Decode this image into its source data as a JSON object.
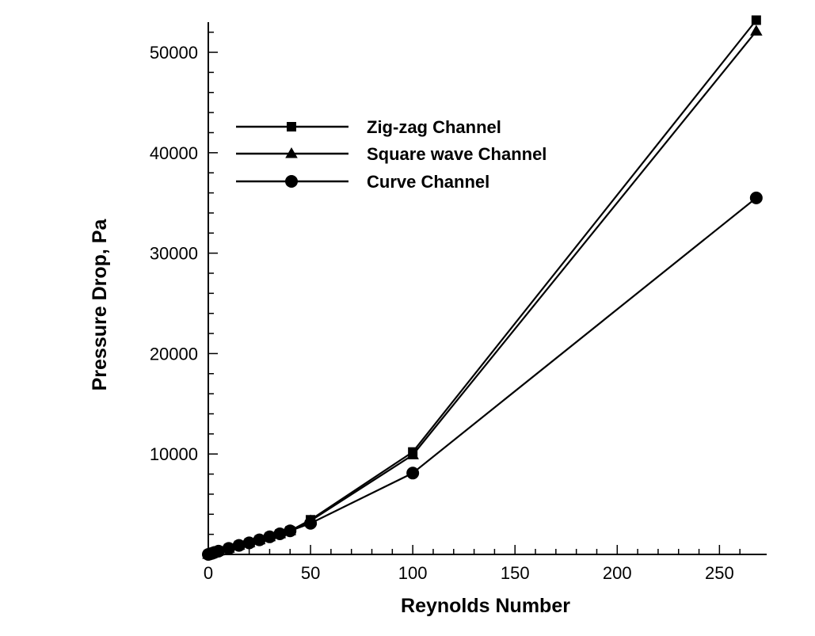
{
  "chart_data": {
    "type": "line",
    "xlabel": "Reynolds Number",
    "ylabel": "Pressure Drop, Pa",
    "xlim": [
      0,
      270
    ],
    "ylim": [
      0,
      53000
    ],
    "xticks": [
      0,
      50,
      100,
      150,
      200,
      250
    ],
    "yticks": [
      10000,
      20000,
      30000,
      40000,
      50000
    ],
    "xtick_labels": [
      "0",
      "50",
      "100",
      "150",
      "200",
      "250"
    ],
    "ytick_labels": [
      "10000",
      "20000",
      "30000",
      "40000",
      "50000"
    ],
    "grid": false,
    "legend_position": "upper-left",
    "series": [
      {
        "name": "Zig-zag Channel",
        "marker": "square",
        "x": [
          0,
          1,
          2,
          3,
          5,
          10,
          15,
          20,
          25,
          30,
          35,
          40,
          50,
          100,
          268
        ],
        "y": [
          0,
          60,
          120,
          200,
          330,
          600,
          900,
          1150,
          1450,
          1750,
          2050,
          2350,
          3450,
          10200,
          53200
        ]
      },
      {
        "name": "Square wave Channel",
        "marker": "triangle",
        "x": [
          0,
          1,
          2,
          3,
          5,
          10,
          15,
          20,
          25,
          30,
          35,
          40,
          50,
          100,
          268
        ],
        "y": [
          0,
          60,
          120,
          200,
          330,
          600,
          900,
          1150,
          1450,
          1750,
          2050,
          2350,
          3350,
          9900,
          52100
        ]
      },
      {
        "name": "Curve Channel",
        "marker": "circle",
        "x": [
          0,
          1,
          2,
          3,
          5,
          10,
          15,
          20,
          25,
          30,
          35,
          40,
          50,
          100,
          268
        ],
        "y": [
          0,
          60,
          120,
          200,
          330,
          600,
          900,
          1150,
          1450,
          1750,
          2050,
          2350,
          3100,
          8100,
          35500
        ]
      }
    ]
  }
}
